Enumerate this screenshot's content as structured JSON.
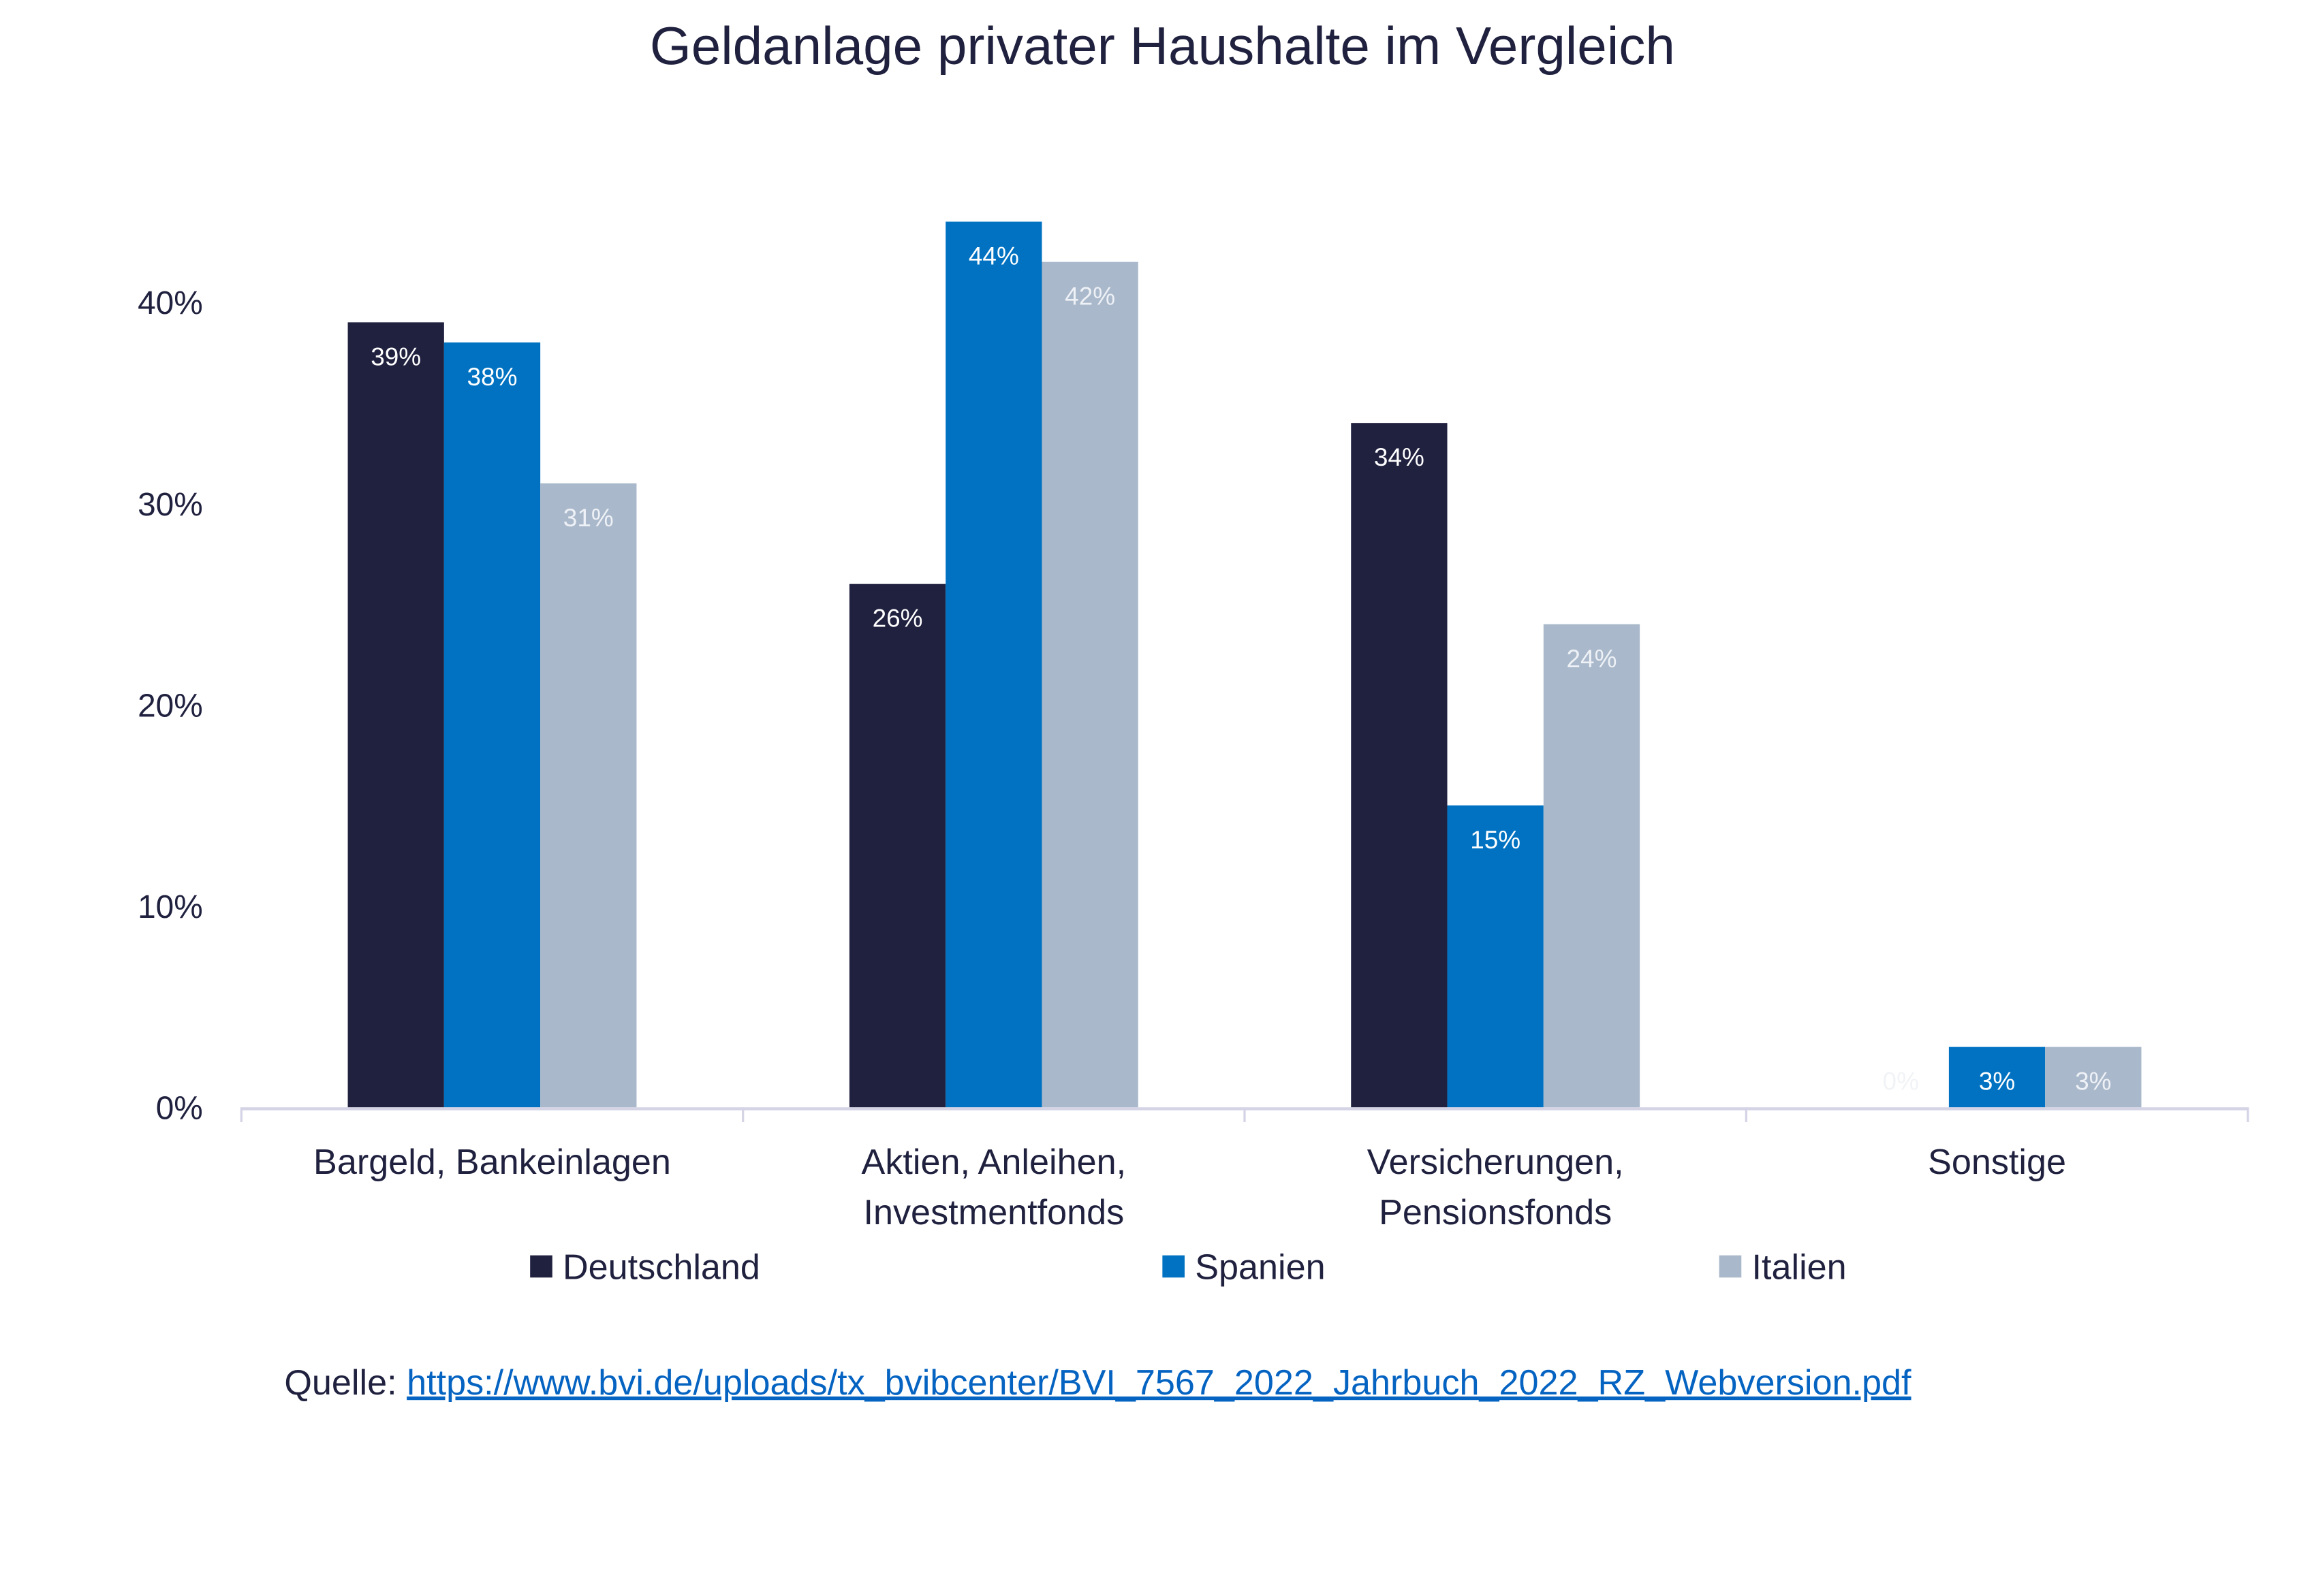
{
  "chart_data": {
    "type": "bar",
    "title": "Geldanlage privater Haushalte im Vergleich",
    "categories": [
      "Bargeld, Bankeinlagen",
      "Aktien, Anleihen, Investmentfonds",
      "Versicherungen, Pensionsfonds",
      "Sonstige"
    ],
    "category_lines": [
      [
        "Bargeld, Bankeinlagen"
      ],
      [
        "Aktien, Anleihen,",
        "Investmentfonds"
      ],
      [
        "Versicherungen,",
        "Pensionsfonds"
      ],
      [
        "Sonstige"
      ]
    ],
    "series": [
      {
        "name": "Deutschland",
        "values": [
          39,
          26,
          34,
          0
        ],
        "labels": [
          "39%",
          "26%",
          "34%",
          "0%"
        ],
        "color": "#20213f"
      },
      {
        "name": "Spanien",
        "values": [
          38,
          44,
          15,
          3
        ],
        "labels": [
          "38%",
          "44%",
          "15%",
          "3%"
        ],
        "color": "#0072c1"
      },
      {
        "name": "Italien",
        "values": [
          31,
          42,
          24,
          3
        ],
        "labels": [
          "31%",
          "42%",
          "24%",
          "3%"
        ],
        "color": "#a9b8ca"
      }
    ],
    "yticks": [
      "0%",
      "10%",
      "20%",
      "30%",
      "40%"
    ],
    "ytick_values": [
      0,
      10,
      20,
      30,
      40
    ],
    "ylim": [
      0,
      44
    ],
    "grid": false,
    "legend_position": "bottom"
  },
  "source": {
    "label": "Quelle: ",
    "link": "https://www.bvi.de/uploads/tx_bvibcenter/BVI_7567_2022_Jahrbuch_2022_RZ_Webversion.pdf"
  }
}
